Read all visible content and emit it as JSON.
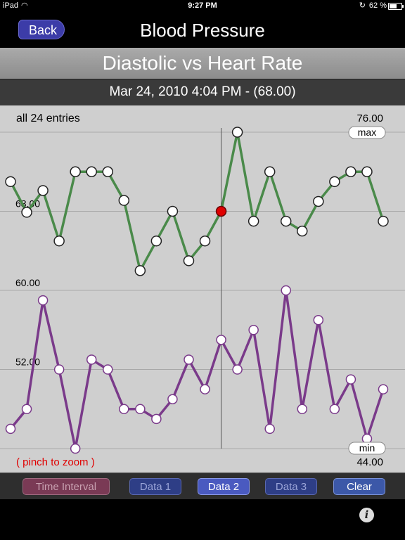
{
  "status_bar": {
    "carrier": "iPad",
    "time": "9:27 PM",
    "battery_text": "62 %",
    "battery_level": 0.62
  },
  "nav": {
    "back_label": "Back",
    "title": "Blood Pressure"
  },
  "subtitle": "Diastolic vs Heart Rate",
  "selection": "Mar 24, 2010 4:04 PM - (68.00)",
  "chart": {
    "entries_label": "all 24 entries",
    "max_badge": "max",
    "min_badge": "min",
    "max_value": "76.00",
    "min_value": "44.00",
    "hint": "( pinch to zoom )",
    "colors": {
      "top_series": "#4a8a4a",
      "bottom_series": "#7a3a8a",
      "selected_point": "#e00000"
    }
  },
  "chart_data": {
    "type": "line",
    "title": "",
    "y_ticks": [
      "68.00",
      "60.00",
      "52.00"
    ],
    "ylim": [
      44,
      76
    ],
    "grid": true,
    "selected_index": 13,
    "series": [
      {
        "values": [
          71,
          67.9,
          70.1,
          65,
          72,
          72,
          72,
          69.1,
          62,
          65,
          68,
          63,
          65,
          68,
          76,
          67,
          72,
          67,
          66,
          69,
          71,
          72,
          72,
          67
        ]
      },
      {
        "values": [
          46,
          48,
          59,
          52,
          44,
          53,
          52,
          48,
          48,
          47,
          49,
          53,
          50,
          55,
          52,
          56,
          46,
          60,
          48,
          57,
          48,
          51,
          45,
          50
        ]
      }
    ]
  },
  "toolbar": {
    "time_interval": "Time Interval",
    "data1": "Data 1",
    "data2": "Data 2",
    "data3": "Data 3",
    "clear": "Clear"
  }
}
